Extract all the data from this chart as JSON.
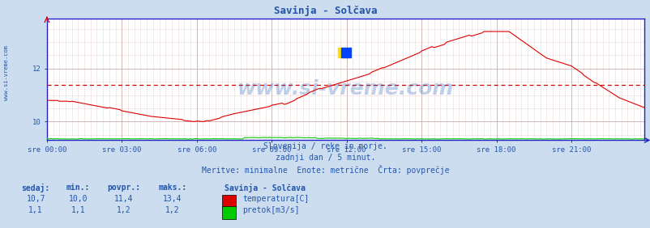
{
  "title": "Savinja - Solčava",
  "bg_color": "#ccddf0",
  "plot_bg_color": "#ffffff",
  "grid_color_minor": "#f0d8d8",
  "grid_color_major": "#d0b0b0",
  "temp_color": "#dd0000",
  "flow_color": "#00cc00",
  "avg_color": "#cc0000",
  "border_color": "#2222cc",
  "text_color": "#2255aa",
  "title_color": "#2255aa",
  "xtick_labels": [
    "sre 00:00",
    "sre 03:00",
    "sre 06:00",
    "sre 09:00",
    "sre 12:00",
    "sre 15:00",
    "sre 18:00",
    "sre 21:00"
  ],
  "ylim_min": 9.3,
  "ylim_max": 13.9,
  "yticks": [
    10,
    12
  ],
  "temp_avg": 11.4,
  "subtitle1": "Slovenija / reke in morje.",
  "subtitle2": "zadnji dan / 5 minut.",
  "subtitle3": "Meritve: minimalne  Enote: metrične  Črta: povprečje",
  "legend_title": "Savinja - Solčava",
  "legend_temp": "temperatura[C]",
  "legend_flow": "pretok[m3/s]",
  "stat_headers": [
    "sedaj:",
    "min.:",
    "povpr.:",
    "maks.:"
  ],
  "stat_temp": [
    "10,7",
    "10,0",
    "11,4",
    "13,4"
  ],
  "stat_flow": [
    "1,1",
    "1,1",
    "1,2",
    "1,2"
  ],
  "watermark": "www.si-vreme.com",
  "left_watermark": "www.si-vreme.com"
}
